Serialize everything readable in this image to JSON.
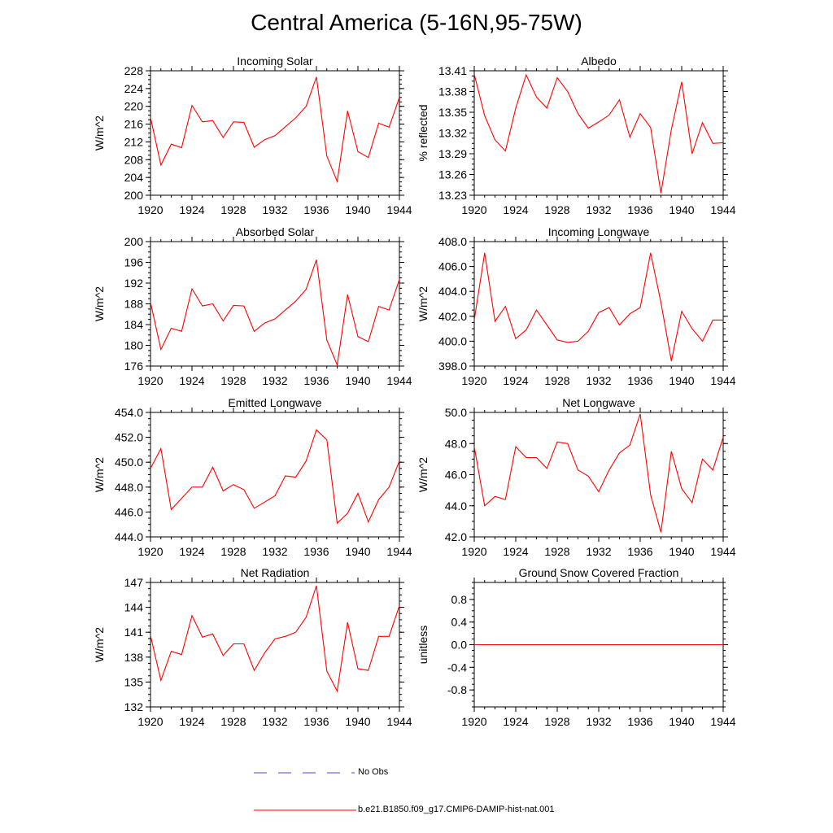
{
  "title": "Central America (5-16N,95-75W)",
  "colors": {
    "model": "#ff0000",
    "obs": "#4a4ad0",
    "axis": "#000000"
  },
  "legend": {
    "obs_label": "No Obs",
    "model_label": "b.e21.B1850.f09_g17.CMIP6-DAMIP-hist-nat.001"
  },
  "chart_data": [
    {
      "type": "line",
      "title": "Incoming Solar",
      "ylabel": "W/m^2",
      "xlim": [
        1920,
        1944
      ],
      "ylim": [
        200,
        228
      ],
      "xticks": [
        1920,
        1924,
        1928,
        1932,
        1936,
        1940,
        1944
      ],
      "xtick_labels": [
        "1920",
        "1924",
        "1928",
        "1932",
        "1936",
        "1940",
        "1944"
      ],
      "yticks": [
        200,
        204,
        208,
        212,
        216,
        220,
        224,
        228
      ],
      "ytick_labels": [
        "200",
        "204",
        "208",
        "212",
        "216",
        "220",
        "224",
        "228"
      ],
      "series": [
        {
          "x": [
            1920,
            1921,
            1922,
            1923,
            1924,
            1925,
            1926,
            1927,
            1928,
            1929,
            1930,
            1931,
            1932,
            1933,
            1934,
            1935,
            1936,
            1937,
            1938,
            1939,
            1940,
            1941,
            1942,
            1943,
            1944
          ],
          "y": [
            217.5,
            206.8,
            211.5,
            210.7,
            220.2,
            216.5,
            216.8,
            213.0,
            216.5,
            216.4,
            210.8,
            212.5,
            213.4,
            215.4,
            217.4,
            220.0,
            226.6,
            208.8,
            203.1,
            219.0,
            209.8,
            208.5,
            216.2,
            215.3,
            222.0
          ]
        }
      ]
    },
    {
      "type": "line",
      "title": "Albedo",
      "ylabel": "% reflected",
      "xlim": [
        1920,
        1944
      ],
      "ylim": [
        13.23,
        13.41
      ],
      "xticks": [
        1920,
        1924,
        1928,
        1932,
        1936,
        1940,
        1944
      ],
      "xtick_labels": [
        "1920",
        "1924",
        "1928",
        "1932",
        "1936",
        "1940",
        "1944"
      ],
      "yticks": [
        13.23,
        13.26,
        13.29,
        13.32,
        13.35,
        13.38,
        13.41
      ],
      "ytick_labels": [
        "13.23",
        "13.26",
        "13.29",
        "13.32",
        "13.35",
        "13.38",
        "13.41"
      ],
      "series": [
        {
          "x": [
            1920,
            1921,
            1922,
            1923,
            1924,
            1925,
            1926,
            1927,
            1928,
            1929,
            1930,
            1931,
            1932,
            1933,
            1934,
            1935,
            1936,
            1937,
            1938,
            1939,
            1940,
            1941,
            1942,
            1943,
            1944
          ],
          "y": [
            13.405,
            13.345,
            13.31,
            13.294,
            13.356,
            13.404,
            13.372,
            13.356,
            13.4,
            13.38,
            13.348,
            13.327,
            13.336,
            13.346,
            13.368,
            13.314,
            13.348,
            13.328,
            13.233,
            13.325,
            13.394,
            13.29,
            13.335,
            13.305,
            13.306
          ]
        }
      ]
    },
    {
      "type": "line",
      "title": "Absorbed Solar",
      "ylabel": "W/m^2",
      "xlim": [
        1920,
        1944
      ],
      "ylim": [
        176,
        200
      ],
      "xticks": [
        1920,
        1924,
        1928,
        1932,
        1936,
        1940,
        1944
      ],
      "xtick_labels": [
        "1920",
        "1924",
        "1928",
        "1932",
        "1936",
        "1940",
        "1944"
      ],
      "yticks": [
        176,
        180,
        184,
        188,
        192,
        196,
        200
      ],
      "ytick_labels": [
        "176",
        "180",
        "184",
        "188",
        "192",
        "196",
        "200"
      ],
      "series": [
        {
          "x": [
            1920,
            1921,
            1922,
            1923,
            1924,
            1925,
            1926,
            1927,
            1928,
            1929,
            1930,
            1931,
            1932,
            1933,
            1934,
            1935,
            1936,
            1937,
            1938,
            1939,
            1940,
            1941,
            1942,
            1943,
            1944
          ],
          "y": [
            188.3,
            179.2,
            183.3,
            182.7,
            190.9,
            187.6,
            188.0,
            184.7,
            187.7,
            187.6,
            182.7,
            184.3,
            185.1,
            186.8,
            188.5,
            190.8,
            196.5,
            181.0,
            176.2,
            189.8,
            181.7,
            180.7,
            187.5,
            186.8,
            192.7
          ]
        }
      ]
    },
    {
      "type": "line",
      "title": "Incoming Longwave",
      "ylabel": "W/m^2",
      "xlim": [
        1920,
        1944
      ],
      "ylim": [
        398,
        408
      ],
      "xticks": [
        1920,
        1924,
        1928,
        1932,
        1936,
        1940,
        1944
      ],
      "xtick_labels": [
        "1920",
        "1924",
        "1928",
        "1932",
        "1936",
        "1940",
        "1944"
      ],
      "yticks": [
        398,
        400,
        402,
        404,
        406,
        408
      ],
      "ytick_labels": [
        "398.0",
        "400.0",
        "402.0",
        "404.0",
        "406.0",
        "408.0"
      ],
      "series": [
        {
          "x": [
            1920,
            1921,
            1922,
            1923,
            1924,
            1925,
            1926,
            1927,
            1928,
            1929,
            1930,
            1931,
            1932,
            1933,
            1934,
            1935,
            1936,
            1937,
            1938,
            1939,
            1940,
            1941,
            1942,
            1943,
            1944
          ],
          "y": [
            401.7,
            407.1,
            401.6,
            402.8,
            400.2,
            400.9,
            402.5,
            401.3,
            400.1,
            399.9,
            400.0,
            400.8,
            402.3,
            402.7,
            401.3,
            402.2,
            402.7,
            407.1,
            403.1,
            398.4,
            402.4,
            401.0,
            400.0,
            401.7,
            401.7
          ]
        }
      ]
    },
    {
      "type": "line",
      "title": "Emitted Longwave",
      "ylabel": "W/m^2",
      "xlim": [
        1920,
        1944
      ],
      "ylim": [
        444,
        454
      ],
      "xticks": [
        1920,
        1924,
        1928,
        1932,
        1936,
        1940,
        1944
      ],
      "xtick_labels": [
        "1920",
        "1924",
        "1928",
        "1932",
        "1936",
        "1940",
        "1944"
      ],
      "yticks": [
        444,
        446,
        448,
        450,
        452,
        454
      ],
      "ytick_labels": [
        "444.0",
        "446.0",
        "448.0",
        "450.0",
        "452.0",
        "454.0"
      ],
      "series": [
        {
          "x": [
            1920,
            1921,
            1922,
            1923,
            1924,
            1925,
            1926,
            1927,
            1928,
            1929,
            1930,
            1931,
            1932,
            1933,
            1934,
            1935,
            1936,
            1937,
            1938,
            1939,
            1940,
            1941,
            1942,
            1943,
            1944
          ],
          "y": [
            449.5,
            451.1,
            446.2,
            447.1,
            448.0,
            448.0,
            449.6,
            447.7,
            448.2,
            447.8,
            446.3,
            446.8,
            447.3,
            448.9,
            448.8,
            450.1,
            452.6,
            451.8,
            445.1,
            445.9,
            447.5,
            445.2,
            447.0,
            448.0,
            450.1
          ]
        }
      ]
    },
    {
      "type": "line",
      "title": "Net Longwave",
      "ylabel": "W/m^2",
      "xlim": [
        1920,
        1944
      ],
      "ylim": [
        42,
        50
      ],
      "xticks": [
        1920,
        1924,
        1928,
        1932,
        1936,
        1940,
        1944
      ],
      "xtick_labels": [
        "1920",
        "1924",
        "1928",
        "1932",
        "1936",
        "1940",
        "1944"
      ],
      "yticks": [
        42,
        44,
        46,
        48,
        50
      ],
      "ytick_labels": [
        "42.0",
        "44.0",
        "46.0",
        "48.0",
        "50.0"
      ],
      "series": [
        {
          "x": [
            1920,
            1921,
            1922,
            1923,
            1924,
            1925,
            1926,
            1927,
            1928,
            1929,
            1930,
            1931,
            1932,
            1933,
            1934,
            1935,
            1936,
            1937,
            1938,
            1939,
            1940,
            1941,
            1942,
            1943,
            1944
          ],
          "y": [
            47.8,
            44.0,
            44.6,
            44.4,
            47.8,
            47.1,
            47.1,
            46.4,
            48.1,
            48.0,
            46.3,
            45.9,
            44.9,
            46.3,
            47.4,
            47.9,
            49.9,
            44.7,
            42.3,
            47.5,
            45.1,
            44.2,
            47.0,
            46.3,
            48.4
          ]
        }
      ]
    },
    {
      "type": "line",
      "title": "Net Radiation",
      "ylabel": "W/m^2",
      "xlim": [
        1920,
        1944
      ],
      "ylim": [
        132,
        147
      ],
      "xticks": [
        1920,
        1924,
        1928,
        1932,
        1936,
        1940,
        1944
      ],
      "xtick_labels": [
        "1920",
        "1924",
        "1928",
        "1932",
        "1936",
        "1940",
        "1944"
      ],
      "yticks": [
        132,
        135,
        138,
        141,
        144,
        147
      ],
      "ytick_labels": [
        "132",
        "135",
        "138",
        "141",
        "144",
        "147"
      ],
      "series": [
        {
          "x": [
            1920,
            1921,
            1922,
            1923,
            1924,
            1925,
            1926,
            1927,
            1928,
            1929,
            1930,
            1931,
            1932,
            1933,
            1934,
            1935,
            1936,
            1937,
            1938,
            1939,
            1940,
            1941,
            1942,
            1943,
            1944
          ],
          "y": [
            140.6,
            135.2,
            138.7,
            138.3,
            143.0,
            140.4,
            140.8,
            138.2,
            139.6,
            139.6,
            136.4,
            138.5,
            140.2,
            140.5,
            141.0,
            142.8,
            146.6,
            136.3,
            133.9,
            142.2,
            136.6,
            136.4,
            140.5,
            140.5,
            144.2
          ]
        }
      ]
    },
    {
      "type": "line",
      "title": "Ground Snow Covered Fraction",
      "ylabel": "unitless",
      "xlim": [
        1920,
        1944
      ],
      "ylim": [
        -1.1,
        1.1
      ],
      "xticks": [
        1920,
        1924,
        1928,
        1932,
        1936,
        1940,
        1944
      ],
      "xtick_labels": [
        "1920",
        "1924",
        "1928",
        "1932",
        "1936",
        "1940",
        "1944"
      ],
      "yticks": [
        -0.8,
        -0.4,
        0.0,
        0.4,
        0.8
      ],
      "ytick_labels": [
        "-0.8",
        "-0.4",
        "0.0",
        "0.4",
        "0.8"
      ],
      "series": [
        {
          "x": [
            1920,
            1921,
            1922,
            1923,
            1924,
            1925,
            1926,
            1927,
            1928,
            1929,
            1930,
            1931,
            1932,
            1933,
            1934,
            1935,
            1936,
            1937,
            1938,
            1939,
            1940,
            1941,
            1942,
            1943,
            1944
          ],
          "y": [
            0,
            0,
            0,
            0,
            0,
            0,
            0,
            0,
            0,
            0,
            0,
            0,
            0,
            0,
            0,
            0,
            0,
            0,
            0,
            0,
            0,
            0,
            0,
            0,
            0
          ]
        }
      ]
    }
  ]
}
